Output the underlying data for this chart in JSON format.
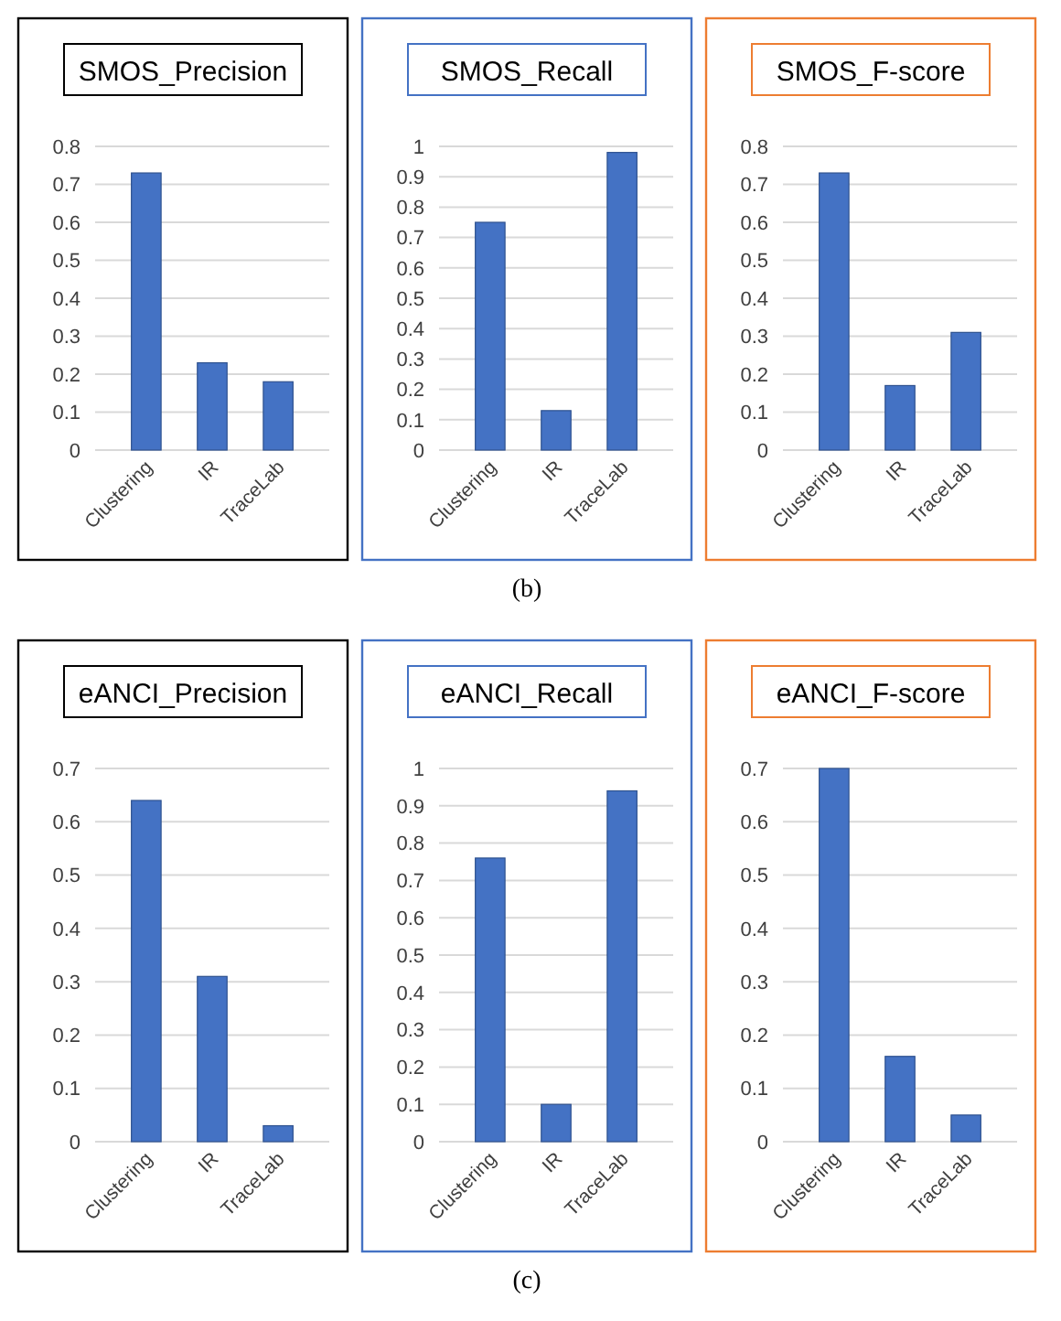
{
  "chart_data": [
    {
      "type": "bar",
      "title": "SMOS_Precision",
      "categories": [
        "Clustering",
        "IR",
        "TraceLab"
      ],
      "values": [
        0.73,
        0.23,
        0.18
      ],
      "color": "#4472c4",
      "ylim": [
        0,
        0.8
      ],
      "yticks": [
        0,
        0.1,
        0.2,
        0.3,
        0.4,
        0.5,
        0.6,
        0.7,
        0.8
      ],
      "grid": "y"
    },
    {
      "type": "bar",
      "title": "SMOS_Recall",
      "categories": [
        "Clustering",
        "IR",
        "TraceLab"
      ],
      "values": [
        0.75,
        0.13,
        0.98
      ],
      "color": "#4472c4",
      "ylim": [
        0,
        1
      ],
      "yticks": [
        0,
        0.1,
        0.2,
        0.3,
        0.4,
        0.5,
        0.6,
        0.7,
        0.8,
        0.9,
        1
      ],
      "grid": "y",
      "annotations": [
        "(b)"
      ]
    },
    {
      "type": "bar",
      "title": "SMOS_F-score",
      "categories": [
        "Clustering",
        "IR",
        "TraceLab"
      ],
      "values": [
        0.73,
        0.17,
        0.31
      ],
      "color": "#4472c4",
      "ylim": [
        0,
        0.8
      ],
      "yticks": [
        0,
        0.1,
        0.2,
        0.3,
        0.4,
        0.5,
        0.6,
        0.7,
        0.8
      ],
      "grid": "y"
    },
    {
      "type": "bar",
      "title": "eANCI_Precision",
      "categories": [
        "Clustering",
        "IR",
        "TraceLab"
      ],
      "values": [
        0.64,
        0.31,
        0.03
      ],
      "color": "#4472c4",
      "ylim": [
        0,
        0.7
      ],
      "yticks": [
        0,
        0.1,
        0.2,
        0.3,
        0.4,
        0.5,
        0.6,
        0.7
      ],
      "grid": "y"
    },
    {
      "type": "bar",
      "title": "eANCI_Recall",
      "categories": [
        "Clustering",
        "IR",
        "TraceLab"
      ],
      "values": [
        0.76,
        0.1,
        0.94
      ],
      "color": "#4472c4",
      "ylim": [
        0,
        1
      ],
      "yticks": [
        0,
        0.1,
        0.2,
        0.3,
        0.4,
        0.5,
        0.6,
        0.7,
        0.8,
        0.9,
        1
      ],
      "grid": "y",
      "annotations": [
        "(c)"
      ]
    },
    {
      "type": "bar",
      "title": "eANCI_F-score",
      "categories": [
        "Clustering",
        "IR",
        "TraceLab"
      ],
      "values": [
        0.7,
        0.16,
        0.05
      ],
      "color": "#4472c4",
      "ylim": [
        0,
        0.7
      ],
      "yticks": [
        0,
        0.1,
        0.2,
        0.3,
        0.4,
        0.5,
        0.6,
        0.7
      ],
      "grid": "y"
    }
  ]
}
